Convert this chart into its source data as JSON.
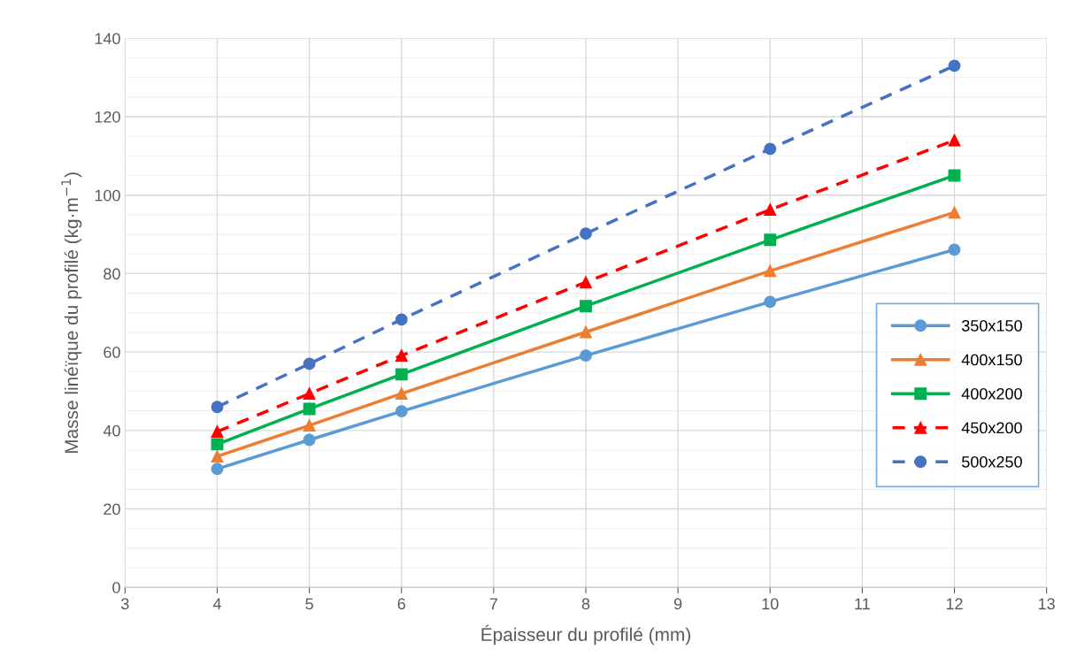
{
  "chart_data": {
    "type": "line",
    "xlabel": "Épaisseur du profilé (mm)",
    "ylabel": "Masse linéïque du profilé (kg·m$^{−1}$)",
    "x": [
      4,
      5,
      6,
      8,
      10,
      12
    ],
    "series": [
      {
        "name": "350x150",
        "color": "#5b9bd5",
        "marker": "circle",
        "line_style": "solid",
        "values": [
          30.2,
          37.6,
          44.9,
          59.1,
          72.8,
          86.1
        ]
      },
      {
        "name": "400x150",
        "color": "#ed7d31",
        "marker": "triangle",
        "line_style": "solid",
        "values": [
          33.4,
          41.3,
          49.4,
          65.1,
          80.7,
          95.6
        ]
      },
      {
        "name": "400x200",
        "color": "#00b050",
        "marker": "square",
        "line_style": "solid",
        "values": [
          36.5,
          45.5,
          54.3,
          71.7,
          88.6,
          105
        ]
      },
      {
        "name": "450x200",
        "color": "#ff0000",
        "marker": "triangle",
        "line_style": "dashed",
        "values": [
          39.7,
          49.4,
          59.1,
          77.8,
          96.3,
          114
        ]
      },
      {
        "name": "500x250",
        "color": "#4472c4",
        "marker": "circle",
        "line_style": "dashed",
        "values": [
          46,
          57,
          68.3,
          90.2,
          111.8,
          133
        ]
      }
    ],
    "xlim": [
      3,
      13
    ],
    "xticks": [
      3,
      4,
      5,
      6,
      7,
      8,
      9,
      10,
      11,
      12,
      13
    ],
    "ylim": [
      0,
      140
    ],
    "yticks": [
      0,
      20,
      40,
      60,
      80,
      100,
      120,
      140
    ],
    "grid": true,
    "legend": "center right"
  }
}
